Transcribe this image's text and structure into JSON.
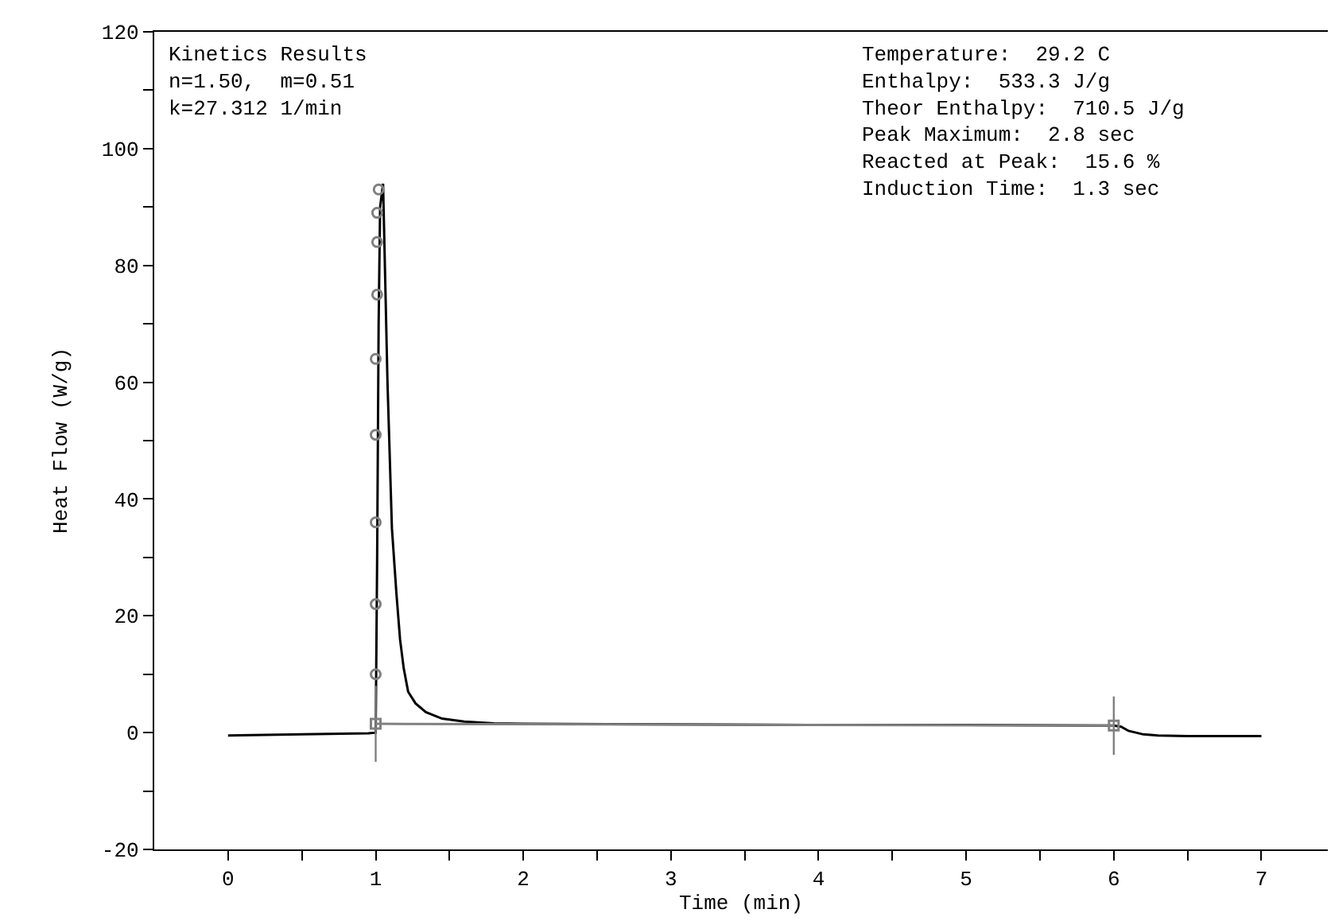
{
  "chart_data": {
    "type": "line",
    "xlabel": "Time (min)",
    "ylabel": "Heat Flow (W/g)",
    "xlim": [
      -0.5,
      7.45
    ],
    "ylim": [
      -20,
      120
    ],
    "xticks": [
      0,
      {
        "value": 0.5,
        "label": null
      },
      1,
      {
        "value": 1.5,
        "label": null
      },
      2,
      {
        "value": 2.5,
        "label": null
      },
      3,
      {
        "value": 3.5,
        "label": null
      },
      4,
      {
        "value": 4.5,
        "label": null
      },
      5,
      {
        "value": 5.5,
        "label": null
      },
      6,
      {
        "value": 6.5,
        "label": null
      },
      7
    ],
    "yticks": [
      -20,
      {
        "value": -10,
        "label": null
      },
      0,
      {
        "value": 10,
        "label": null
      },
      20,
      {
        "value": 30,
        "label": null
      },
      40,
      {
        "value": 50,
        "label": null
      },
      60,
      {
        "value": 70,
        "label": null
      },
      80,
      {
        "value": 90,
        "label": null
      },
      100,
      {
        "value": 110,
        "label": null
      },
      120
    ],
    "series": [
      {
        "color": "#000000",
        "marker": "none",
        "x": [
          0,
          0.5,
          0.95,
          1.0,
          1.01,
          1.02,
          1.03,
          1.05,
          1.08,
          1.11,
          1.14,
          1.165,
          1.19,
          1.22,
          1.27,
          1.34,
          1.45,
          1.6,
          1.8,
          2.0,
          3.0,
          4.0,
          5.0,
          5.9,
          6.0,
          6.05,
          6.1,
          6.2,
          6.3,
          6.5,
          7.0
        ],
        "values": [
          -0.5,
          -0.3,
          -0.1,
          0,
          30,
          70,
          90,
          94,
          60,
          35,
          24,
          16,
          11,
          7,
          5,
          3.5,
          2.4,
          1.9,
          1.6,
          1.5,
          1.4,
          1.3,
          1.3,
          1.2,
          1.2,
          1.0,
          0.3,
          -0.3,
          -0.5,
          -0.6,
          -0.6
        ]
      },
      {
        "color": "#808080",
        "type": "scatter",
        "marker": "circle",
        "x": [
          1.0,
          1.0,
          1.0,
          1.0,
          1.0,
          1.01,
          1.01,
          1.01,
          1.02
        ],
        "values": [
          10,
          22,
          36,
          51,
          64,
          75,
          84,
          89,
          93
        ]
      },
      {
        "color": "#808080",
        "marker": "square",
        "x": [
          1.0,
          6.0
        ],
        "values": [
          1.5,
          1.2
        ],
        "errors": [
          6.5,
          5
        ]
      }
    ],
    "annotations": [
      "Kinetics Results\nn=1.50,  m=0.51\nk=27.312 1/min",
      "Temperature:  29.2 C\nEnthalpy:  533.3 J/g\nTheor Enthalpy:  710.5 J/g\nPeak Maximum:  2.8 sec\nReacted at Peak:  15.6 %\nInduction Time:  1.3 sec"
    ]
  }
}
